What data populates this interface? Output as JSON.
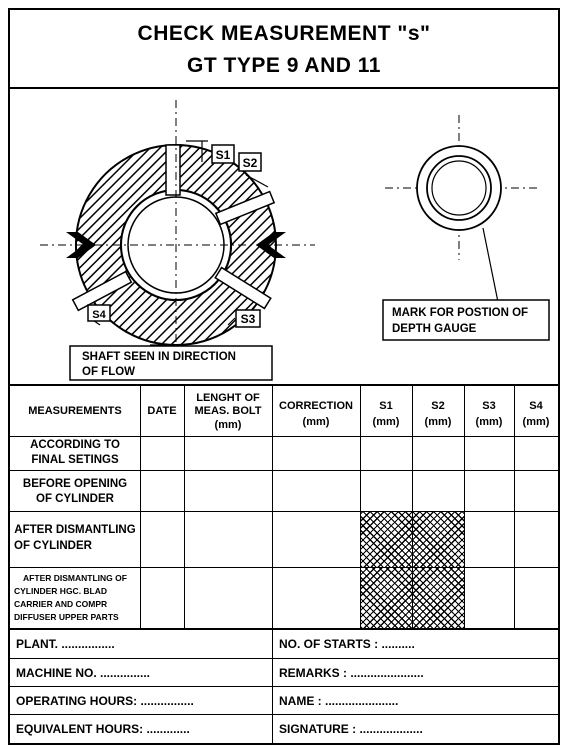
{
  "title": {
    "line1": "CHECK  MEASUREMENT \"s\"",
    "line2": "GT  TYPE  9  AND  11"
  },
  "diagram": {
    "labels": {
      "s1": "S1",
      "s2": "S2",
      "s3": "S3",
      "s4": "S4"
    },
    "shaft_caption_1": "SHAFT SEEN IN DIRECTION",
    "shaft_caption_2": "OF FLOW",
    "gauge_caption_1": "MARK FOR POSTION OF",
    "gauge_caption_2": "DEPTH GAUGE"
  },
  "table": {
    "headers": {
      "measurements": "MEASUREMENTS",
      "date": "DATE",
      "bolt_1": "LENGHT OF",
      "bolt_2": "MEAS. BOLT",
      "bolt_3": "(mm)",
      "correction_1": "CORRECTION",
      "correction_2": "(mm)",
      "s1_1": "S1",
      "s1_2": "(mm)",
      "s2_1": "S2",
      "s2_2": "(mm)",
      "s3_1": "S3",
      "s3_2": "(mm)",
      "s4_1": "S4",
      "s4_2": "(mm)"
    },
    "rows": {
      "r1_1": "ACCORDING TO",
      "r1_2": "FINAL SETINGS",
      "r2_1": "BEFORE OPENING",
      "r2_2": "OF CYLINDER",
      "r3_1": "AFTER DISMANTLING",
      "r3_2": "OF CYLINDER",
      "r4_1": "AFTER DISMANTLING OF",
      "r4_2": "CYLINDER HGC. BLAD",
      "r4_3": "CARRIER AND COMPR",
      "r4_4": "DIFFUSER UPPER PARTS"
    }
  },
  "footer": {
    "plant": "PLANT.  ................",
    "starts": "NO. OF STARTS : ..........",
    "machine": "MACHINE NO. ...............",
    "remarks": "REMARKS : ......................",
    "operating": "OPERATING HOURS: ................",
    "name": "NAME : ......................",
    "equivalent": "EQUIVALENT HOURS: .............",
    "signature": "SIGNATURE : ..................."
  }
}
